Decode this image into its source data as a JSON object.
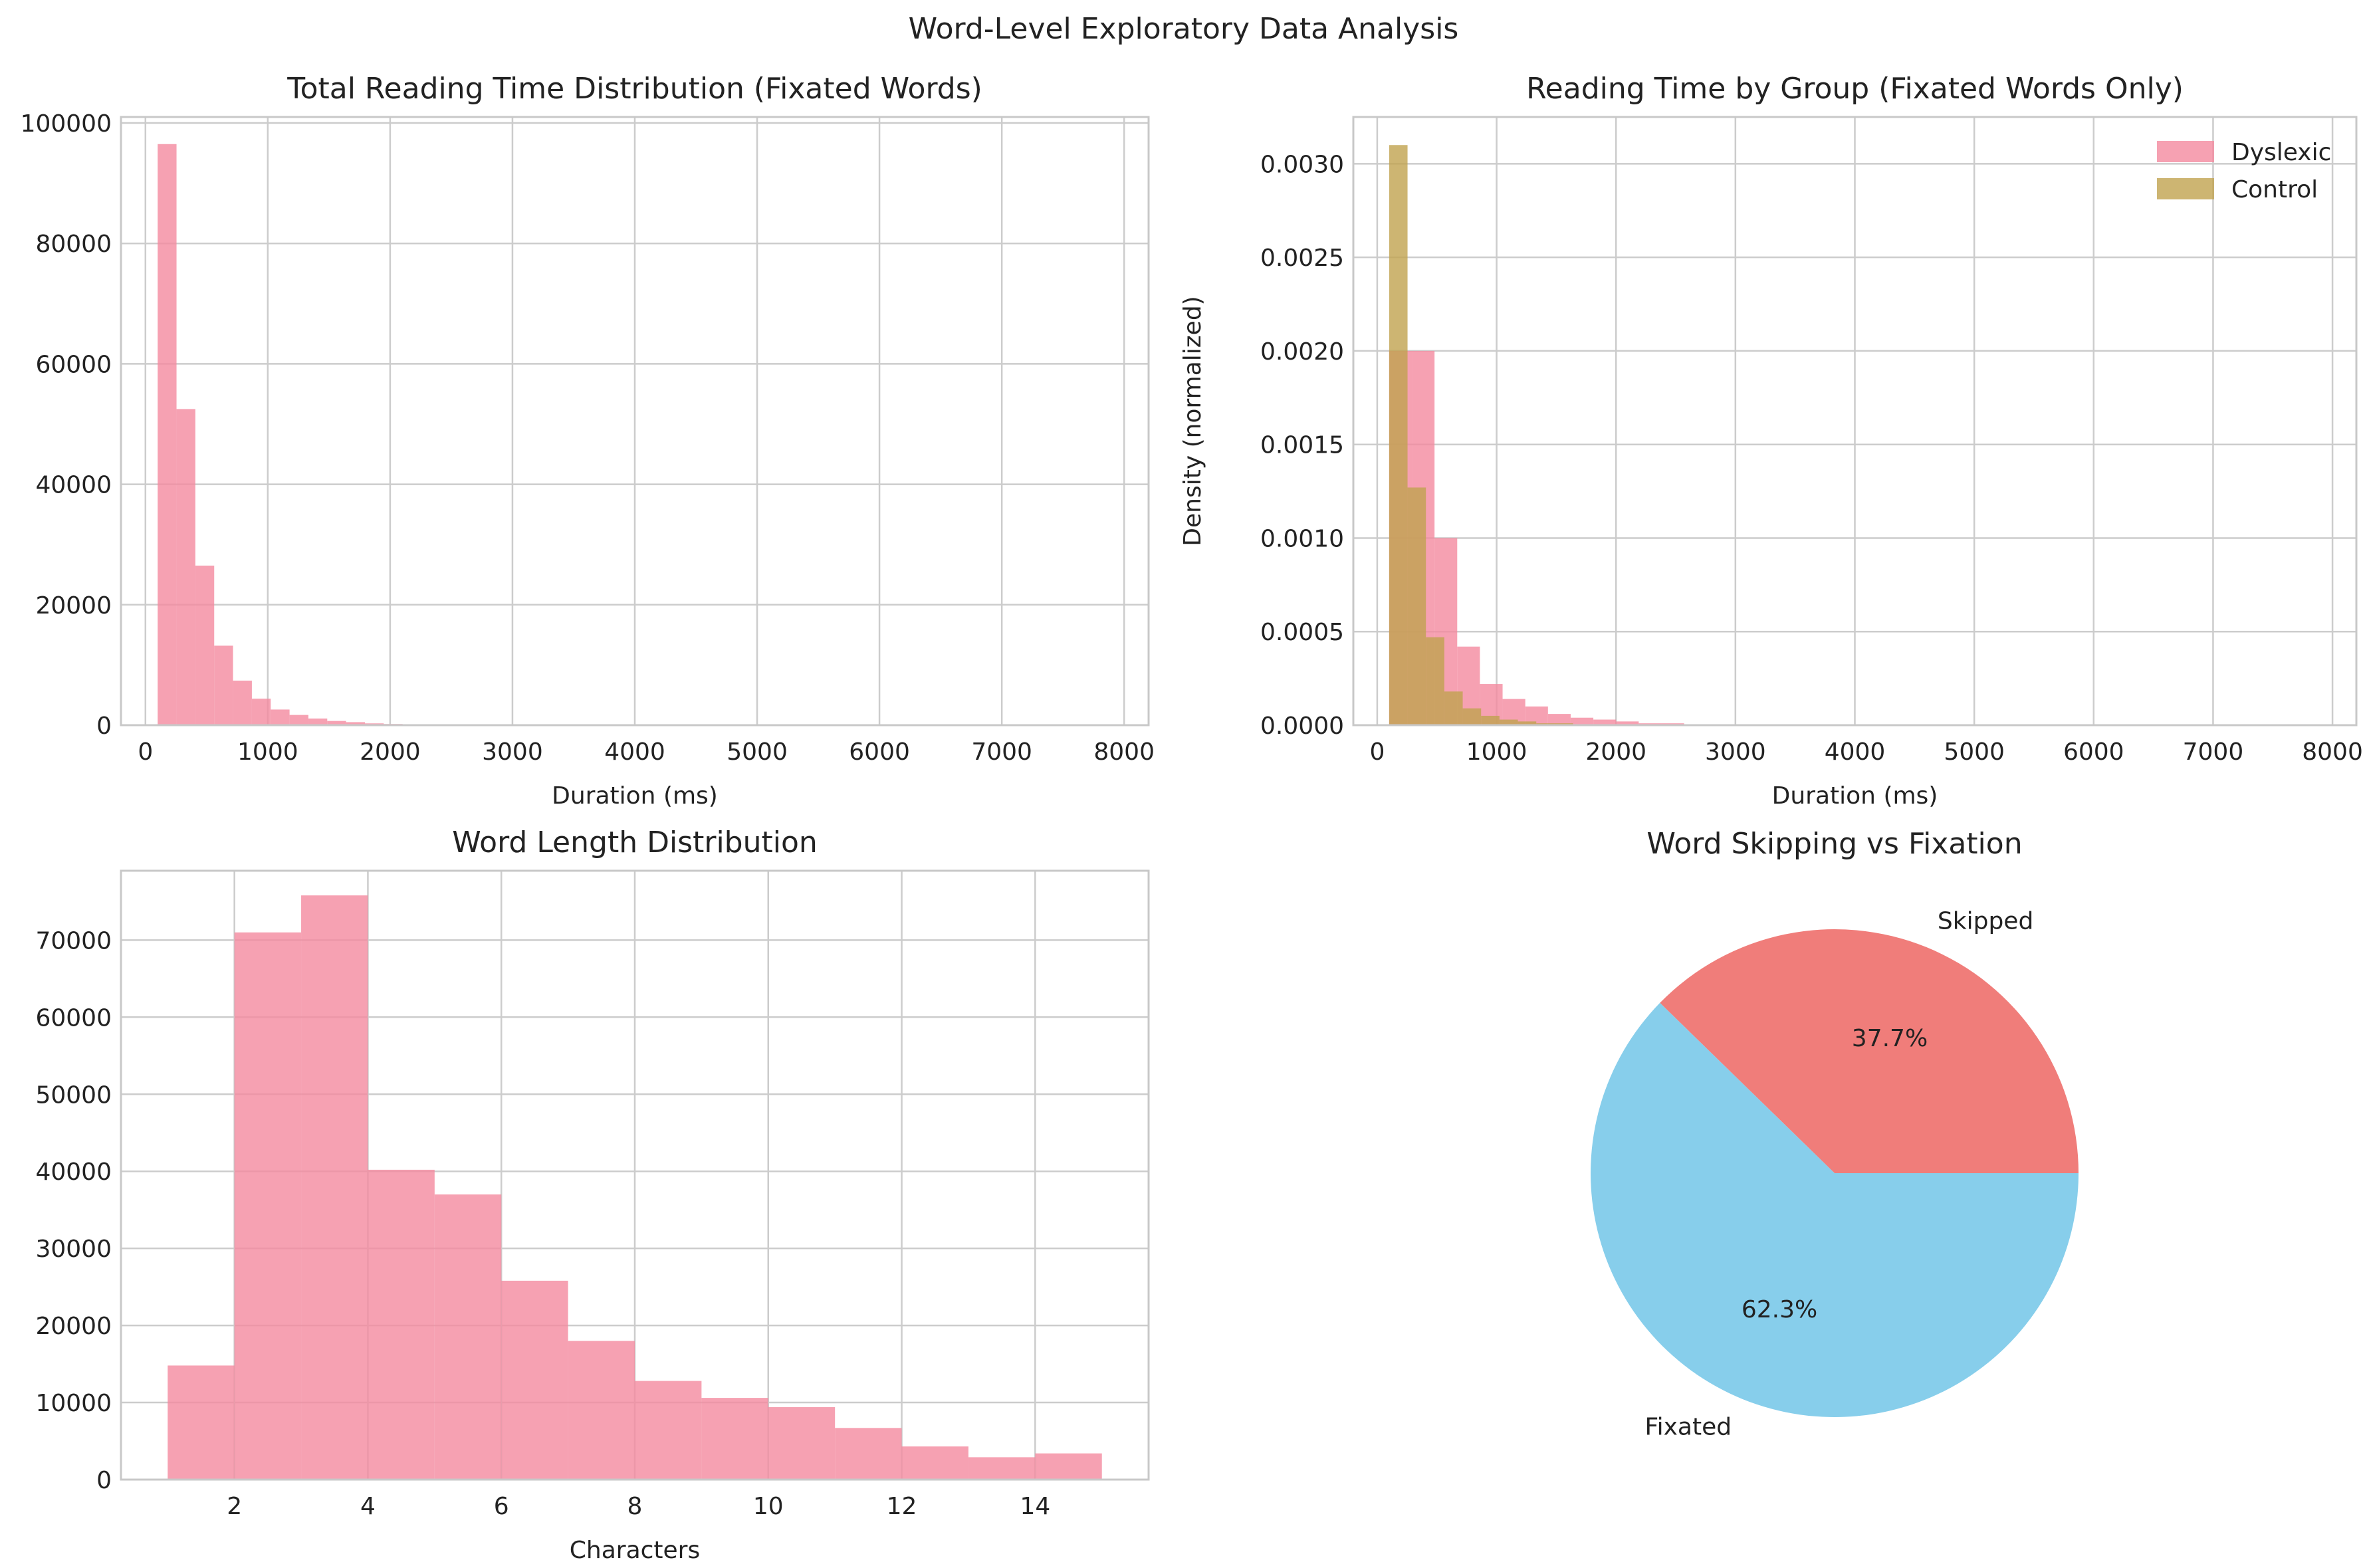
{
  "figure": {
    "suptitle": "Word-Level Exploratory Data Analysis"
  },
  "colors": {
    "pink": "#f48a9f",
    "olive": "#c1a24f",
    "red": "#f07d7a",
    "sky": "#87ceeb",
    "grid": "#cccccc",
    "frame": "#c8c8c8"
  },
  "chart_data": [
    {
      "type": "bar",
      "title": "Total Reading Time Distribution (Fixated Words)",
      "xlabel": "Duration (ms)",
      "ylabel": "",
      "xlim": [
        -200,
        8200
      ],
      "ylim": [
        0,
        101000
      ],
      "xticks": [
        0,
        1000,
        2000,
        3000,
        4000,
        5000,
        6000,
        7000,
        8000
      ],
      "yticks": [
        0,
        20000,
        40000,
        60000,
        80000,
        100000
      ],
      "grid": true,
      "bin_width": 154,
      "bins_start": [
        100,
        254,
        408,
        562,
        716,
        870,
        1024,
        1178,
        1332,
        1486,
        1640,
        1794,
        1948,
        2102
      ],
      "values": [
        96500,
        52500,
        26500,
        13200,
        7400,
        4400,
        2600,
        1700,
        1100,
        700,
        500,
        300,
        200,
        100
      ]
    },
    {
      "type": "bar",
      "title": "Reading Time by Group (Fixated Words Only)",
      "xlabel": "Duration (ms)",
      "ylabel": "Density (normalized)",
      "xlim": [
        -200,
        8200
      ],
      "ylim": [
        0,
        0.00325
      ],
      "xticks": [
        0,
        1000,
        2000,
        3000,
        4000,
        5000,
        6000,
        7000,
        8000
      ],
      "yticks": [
        0.0,
        0.0005,
        0.001,
        0.0015,
        0.002,
        0.0025,
        0.003
      ],
      "grid": true,
      "legend_position": "top-right",
      "series": [
        {
          "name": "Dyslexic",
          "bin_width": 190,
          "bins_start": [
            100,
            290,
            480,
            670,
            860,
            1050,
            1240,
            1430,
            1620,
            1810,
            2000,
            2190,
            2380
          ],
          "values": [
            0.002,
            0.002,
            0.001,
            0.00042,
            0.00022,
            0.00014,
            0.0001,
            6e-05,
            4e-05,
            3e-05,
            2e-05,
            1e-05,
            1e-05
          ]
        },
        {
          "name": "Control",
          "bin_width": 154,
          "bins_start": [
            100,
            254,
            408,
            562,
            716,
            870,
            1024,
            1178,
            1332,
            1486,
            1640
          ],
          "values": [
            0.0031,
            0.00127,
            0.00047,
            0.00018,
            9e-05,
            5e-05,
            3e-05,
            2e-05,
            1e-05,
            1e-05,
            5e-06
          ]
        }
      ]
    },
    {
      "type": "bar",
      "title": "Word Length Distribution",
      "xlabel": "Characters",
      "ylabel": "",
      "xlim": [
        0.3,
        15.7
      ],
      "ylim": [
        0,
        79000
      ],
      "xticks": [
        2,
        4,
        6,
        8,
        10,
        12,
        14
      ],
      "yticks": [
        0,
        10000,
        20000,
        30000,
        40000,
        50000,
        60000,
        70000
      ],
      "grid": true,
      "bin_width": 1,
      "bins_start": [
        1,
        2,
        3,
        4,
        5,
        6,
        7,
        8,
        9,
        10,
        11,
        12,
        13,
        14
      ],
      "values": [
        14800,
        71000,
        75800,
        40200,
        37000,
        25800,
        18000,
        12800,
        10600,
        9400,
        6700,
        4300,
        2900,
        3400
      ]
    },
    {
      "type": "pie",
      "title": "Word Skipping vs Fixation",
      "labels": [
        "Skipped",
        "Fixated"
      ],
      "values": [
        37.7,
        62.3
      ],
      "pct_labels": [
        "37.7%",
        "62.3%"
      ],
      "colors": [
        "#f07d7a",
        "#87ceeb"
      ]
    }
  ]
}
